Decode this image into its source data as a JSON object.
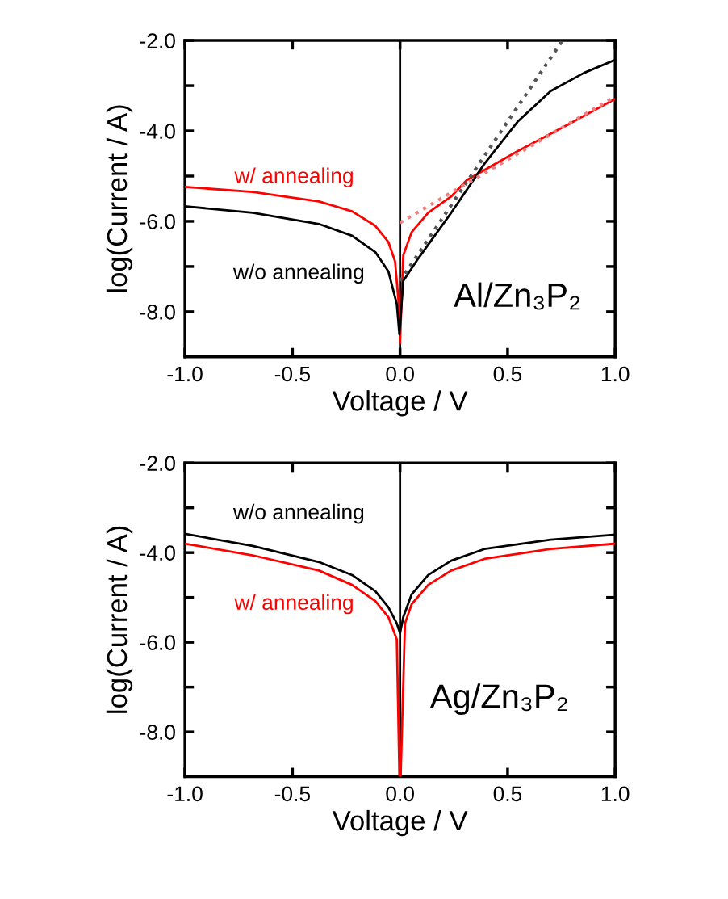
{
  "chart_data": [
    {
      "type": "line",
      "xlabel": "Voltage / V",
      "ylabel": "log(Current / A)",
      "xlim": [
        -1.0,
        1.0
      ],
      "ylim": [
        -9.0,
        -2.0
      ],
      "xticks": [
        {
          "value": -1.0,
          "label": "-1.0"
        },
        {
          "value": -0.5,
          "label": "-0.5"
        },
        {
          "value": 0.0,
          "label": "0.0"
        },
        {
          "value": 0.5,
          "label": "0.5"
        },
        {
          "value": 1.0,
          "label": "1.0"
        }
      ],
      "yticks": [
        {
          "value": -2.0,
          "label": "-2.0"
        },
        {
          "value": -3.0,
          "label": null
        },
        {
          "value": -4.0,
          "label": "-4.0"
        },
        {
          "value": -5.0,
          "label": null
        },
        {
          "value": -6.0,
          "label": "-6.0"
        },
        {
          "value": -7.0,
          "label": null
        },
        {
          "value": -8.0,
          "label": "-8.0"
        }
      ],
      "grid": false,
      "legend": false,
      "marker": "none",
      "ref_lines": [
        {
          "axis": "x",
          "value": 0.0,
          "color": "#000000",
          "line_style": "solid"
        }
      ],
      "annotations": [
        "Al/Zn₃P₂"
      ],
      "series": [
        {
          "name": "w/ annealing",
          "color": "#ff0000",
          "x": [
            -1.0,
            -0.685,
            -0.377,
            -0.223,
            -0.115,
            -0.054,
            -0.023,
            -0.003,
            0.0,
            0.015,
            0.054,
            0.131,
            0.238,
            0.31,
            0.546,
            0.777,
            1.0
          ],
          "values": [
            -5.24,
            -5.35,
            -5.56,
            -5.78,
            -6.1,
            -6.46,
            -6.89,
            -8.0,
            -8.7,
            -6.75,
            -6.24,
            -5.81,
            -5.45,
            -5.09,
            -4.45,
            -3.87,
            -3.29
          ]
        },
        {
          "name": "w/o annealing",
          "color": "#000000",
          "x": [
            -1.0,
            -0.685,
            -0.377,
            -0.223,
            -0.115,
            -0.054,
            -0.015,
            -0.003,
            0.015,
            0.085,
            0.238,
            0.392,
            0.546,
            0.7,
            0.854,
            1.0
          ],
          "values": [
            -5.67,
            -5.81,
            -6.06,
            -6.32,
            -6.68,
            -7.11,
            -7.83,
            -8.5,
            -7.32,
            -6.82,
            -5.81,
            -4.73,
            -3.8,
            -3.12,
            -2.72,
            -2.43
          ]
        },
        {
          "color": "#f08080",
          "line_style": "dotted",
          "x": [
            0.0,
            1.0
          ],
          "values": [
            -6.03,
            -3.24
          ]
        },
        {
          "color": "#555555",
          "line_style": "dotted",
          "x": [
            0.0,
            0.755
          ],
          "values": [
            -7.32,
            -2.0
          ]
        }
      ]
    },
    {
      "type": "line",
      "xlabel": "Voltage / V",
      "ylabel": "log(Current / A)",
      "xlim": [
        -1.0,
        1.0
      ],
      "ylim": [
        -9.0,
        -2.0
      ],
      "xticks": [
        {
          "value": -1.0,
          "label": "-1.0"
        },
        {
          "value": -0.5,
          "label": "-0.5"
        },
        {
          "value": 0.0,
          "label": "0.0"
        },
        {
          "value": 0.5,
          "label": "0.5"
        },
        {
          "value": 1.0,
          "label": "1.0"
        }
      ],
      "yticks": [
        {
          "value": -2.0,
          "label": "-2.0"
        },
        {
          "value": -3.0,
          "label": null
        },
        {
          "value": -4.0,
          "label": "-4.0"
        },
        {
          "value": -5.0,
          "label": null
        },
        {
          "value": -6.0,
          "label": "-6.0"
        },
        {
          "value": -7.0,
          "label": null
        },
        {
          "value": -8.0,
          "label": "-8.0"
        }
      ],
      "grid": false,
      "legend": false,
      "marker": "none",
      "ref_lines": [
        {
          "axis": "x",
          "value": 0.0,
          "color": "#000000",
          "line_style": "solid"
        }
      ],
      "annotations": [
        "Ag/Zn₃P₂"
      ],
      "series": [
        {
          "name": "w/o annealing",
          "color": "#000000",
          "x": [
            -1.0,
            -0.685,
            -0.377,
            -0.223,
            -0.115,
            -0.054,
            -0.015,
            0.0,
            0.015,
            0.054,
            0.131,
            0.238,
            0.392,
            0.7,
            1.0
          ],
          "values": [
            -3.58,
            -3.85,
            -4.21,
            -4.5,
            -4.86,
            -5.22,
            -5.58,
            -5.8,
            -5.44,
            -4.93,
            -4.5,
            -4.18,
            -3.92,
            -3.71,
            -3.6
          ]
        },
        {
          "name": "w/ annealing",
          "color": "#ff0000",
          "x": [
            -1.0,
            -0.685,
            -0.377,
            -0.223,
            -0.115,
            -0.054,
            -0.015,
            -0.003,
            0.003,
            0.023,
            0.054,
            0.131,
            0.238,
            0.392,
            0.7,
            1.0
          ],
          "values": [
            -3.8,
            -4.06,
            -4.4,
            -4.72,
            -5.08,
            -5.44,
            -5.94,
            -8.97,
            -8.97,
            -5.58,
            -5.15,
            -4.72,
            -4.4,
            -4.14,
            -3.92,
            -3.8
          ]
        }
      ]
    }
  ]
}
